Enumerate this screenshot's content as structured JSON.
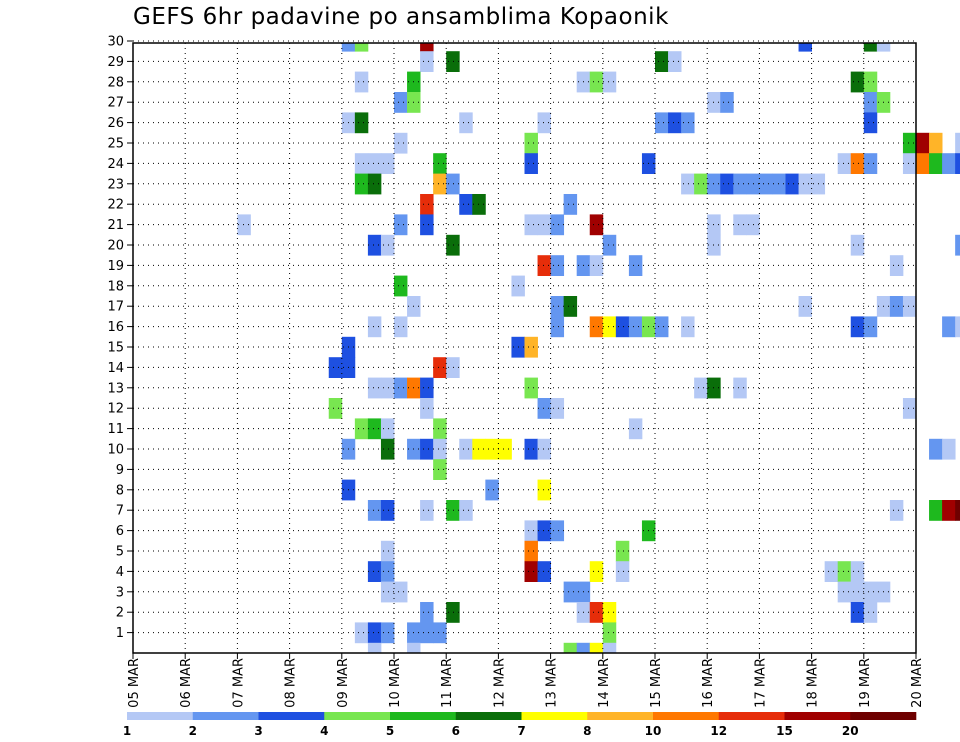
{
  "chart_data": {
    "type": "heatmap",
    "title": "GEFS 6hr padavine po ansamblima Kopaonik",
    "x_ticks": [
      "05 MAR",
      "06 MAR",
      "07 MAR",
      "08 MAR",
      "09 MAR",
      "10 MAR",
      "11 MAR",
      "12 MAR",
      "13 MAR",
      "14 MAR",
      "15 MAR",
      "16 MAR",
      "17 MAR",
      "18 MAR",
      "19 MAR",
      "20 MAR"
    ],
    "y_ticks": [
      1,
      2,
      3,
      4,
      5,
      6,
      7,
      8,
      9,
      10,
      11,
      12,
      13,
      14,
      15,
      16,
      17,
      18,
      19,
      20,
      21,
      22,
      23,
      24,
      25,
      26,
      27,
      28,
      29,
      30
    ],
    "grid": true,
    "colorbar": {
      "labels": [
        "1",
        "2",
        "3",
        "4",
        "5",
        "6",
        "7",
        "8",
        "10",
        "12",
        "15",
        "20"
      ],
      "colors": [
        "#b4c8f5",
        "#6496f0",
        "#1e50e1",
        "#78e650",
        "#1eb91e",
        "#0a6e0a",
        "#ffff00",
        "#ffb428",
        "#ff7800",
        "#e62d0a",
        "#a00000",
        "#6e0000"
      ]
    },
    "cells": [
      [
        4.0,
        30,
        2
      ],
      [
        4.25,
        30,
        4
      ],
      [
        5.5,
        30,
        11
      ],
      [
        12.75,
        30,
        3
      ],
      [
        14.0,
        30,
        6
      ],
      [
        14.25,
        30,
        1
      ],
      [
        5.5,
        29,
        1
      ],
      [
        6.0,
        29,
        6
      ],
      [
        10.0,
        29,
        6
      ],
      [
        10.25,
        29,
        1
      ],
      [
        4.25,
        28,
        1
      ],
      [
        5.25,
        28,
        5
      ],
      [
        8.5,
        28,
        1
      ],
      [
        8.75,
        28,
        4
      ],
      [
        9.0,
        28,
        1
      ],
      [
        13.75,
        28,
        6
      ],
      [
        14.0,
        28,
        4
      ],
      [
        5.0,
        27,
        2
      ],
      [
        5.25,
        27,
        4
      ],
      [
        11.0,
        27,
        1
      ],
      [
        11.25,
        27,
        2
      ],
      [
        14.0,
        27,
        2
      ],
      [
        14.25,
        27,
        4
      ],
      [
        4.0,
        26,
        1
      ],
      [
        4.25,
        26,
        6
      ],
      [
        6.25,
        26,
        1
      ],
      [
        7.75,
        26,
        1
      ],
      [
        10.0,
        26,
        2
      ],
      [
        10.25,
        26,
        3
      ],
      [
        10.5,
        26,
        2
      ],
      [
        14.0,
        26,
        3
      ],
      [
        5.0,
        25,
        1
      ],
      [
        7.5,
        25,
        4
      ],
      [
        14.75,
        25,
        5
      ],
      [
        15.0,
        25,
        11
      ],
      [
        15.25,
        25,
        8
      ],
      [
        15.75,
        25,
        1
      ],
      [
        4.25,
        24,
        1
      ],
      [
        4.5,
        24,
        1
      ],
      [
        4.75,
        24,
        1
      ],
      [
        5.75,
        24,
        5
      ],
      [
        7.5,
        24,
        3
      ],
      [
        9.75,
        24,
        3
      ],
      [
        13.5,
        24,
        1
      ],
      [
        13.75,
        24,
        9
      ],
      [
        14.0,
        24,
        2
      ],
      [
        14.75,
        24,
        1
      ],
      [
        15.0,
        24,
        9
      ],
      [
        15.25,
        24,
        5
      ],
      [
        15.5,
        24,
        2
      ],
      [
        15.75,
        24,
        3
      ],
      [
        4.25,
        23,
        5
      ],
      [
        4.5,
        23,
        6
      ],
      [
        5.75,
        23,
        8
      ],
      [
        6.0,
        23,
        2
      ],
      [
        10.5,
        23,
        1
      ],
      [
        10.75,
        23,
        4
      ],
      [
        11.0,
        23,
        2
      ],
      [
        11.25,
        23,
        3
      ],
      [
        11.5,
        23,
        2
      ],
      [
        11.75,
        23,
        2
      ],
      [
        12.0,
        23,
        2
      ],
      [
        12.25,
        23,
        2
      ],
      [
        12.5,
        23,
        3
      ],
      [
        12.75,
        23,
        1
      ],
      [
        13.0,
        23,
        1
      ],
      [
        5.5,
        22,
        10
      ],
      [
        6.25,
        22,
        3
      ],
      [
        6.5,
        22,
        6
      ],
      [
        8.25,
        22,
        2
      ],
      [
        2.0,
        21,
        1
      ],
      [
        5.0,
        21,
        2
      ],
      [
        5.5,
        21,
        3
      ],
      [
        7.5,
        21,
        1
      ],
      [
        7.75,
        21,
        1
      ],
      [
        8.0,
        21,
        2
      ],
      [
        8.75,
        21,
        11
      ],
      [
        11.0,
        21,
        1
      ],
      [
        11.5,
        21,
        1
      ],
      [
        11.75,
        21,
        1
      ],
      [
        4.5,
        20,
        3
      ],
      [
        4.75,
        20,
        1
      ],
      [
        6.0,
        20,
        6
      ],
      [
        9.0,
        20,
        2
      ],
      [
        11.0,
        20,
        1
      ],
      [
        13.75,
        20,
        1
      ],
      [
        15.75,
        20,
        2
      ],
      [
        7.75,
        19,
        10
      ],
      [
        8.0,
        19,
        2
      ],
      [
        8.5,
        19,
        2
      ],
      [
        8.75,
        19,
        1
      ],
      [
        9.5,
        19,
        2
      ],
      [
        14.5,
        19,
        1
      ],
      [
        5.0,
        18,
        5
      ],
      [
        7.25,
        18,
        1
      ],
      [
        5.25,
        17,
        1
      ],
      [
        8.0,
        17,
        2
      ],
      [
        8.25,
        17,
        6
      ],
      [
        12.75,
        17,
        1
      ],
      [
        14.25,
        17,
        1
      ],
      [
        14.5,
        17,
        2
      ],
      [
        14.75,
        17,
        1
      ],
      [
        4.5,
        16,
        1
      ],
      [
        5.0,
        16,
        1
      ],
      [
        8.0,
        16,
        2
      ],
      [
        8.75,
        16,
        9
      ],
      [
        9.0,
        16,
        7
      ],
      [
        9.25,
        16,
        3
      ],
      [
        9.5,
        16,
        2
      ],
      [
        9.75,
        16,
        4
      ],
      [
        10.0,
        16,
        2
      ],
      [
        10.5,
        16,
        1
      ],
      [
        13.75,
        16,
        3
      ],
      [
        14.0,
        16,
        2
      ],
      [
        15.5,
        16,
        2
      ],
      [
        15.75,
        16,
        1
      ],
      [
        4.0,
        15,
        3
      ],
      [
        7.25,
        15,
        3
      ],
      [
        7.5,
        15,
        8
      ],
      [
        3.75,
        14,
        3
      ],
      [
        4.0,
        14,
        3
      ],
      [
        5.75,
        14,
        10
      ],
      [
        6.0,
        14,
        1
      ],
      [
        4.5,
        13,
        1
      ],
      [
        4.75,
        13,
        1
      ],
      [
        5.0,
        13,
        2
      ],
      [
        5.25,
        13,
        9
      ],
      [
        5.5,
        13,
        3
      ],
      [
        7.5,
        13,
        4
      ],
      [
        10.75,
        13,
        1
      ],
      [
        11.0,
        13,
        6
      ],
      [
        11.5,
        13,
        1
      ],
      [
        3.75,
        12,
        4
      ],
      [
        5.5,
        12,
        1
      ],
      [
        7.75,
        12,
        2
      ],
      [
        8.0,
        12,
        1
      ],
      [
        14.75,
        12,
        1
      ],
      [
        4.25,
        11,
        4
      ],
      [
        4.5,
        11,
        5
      ],
      [
        4.75,
        11,
        1
      ],
      [
        5.75,
        11,
        4
      ],
      [
        9.5,
        11,
        1
      ],
      [
        4.0,
        10,
        2
      ],
      [
        4.75,
        10,
        6
      ],
      [
        5.25,
        10,
        2
      ],
      [
        5.5,
        10,
        3
      ],
      [
        5.75,
        10,
        1
      ],
      [
        6.25,
        10,
        1
      ],
      [
        6.5,
        10,
        7
      ],
      [
        6.75,
        10,
        7
      ],
      [
        7.0,
        10,
        7
      ],
      [
        7.5,
        10,
        3
      ],
      [
        7.75,
        10,
        1
      ],
      [
        15.25,
        10,
        2
      ],
      [
        15.5,
        10,
        1
      ],
      [
        5.75,
        9,
        4
      ],
      [
        4.0,
        8,
        3
      ],
      [
        6.75,
        8,
        2
      ],
      [
        7.75,
        8,
        7
      ],
      [
        4.5,
        7,
        2
      ],
      [
        4.75,
        7,
        3
      ],
      [
        5.5,
        7,
        1
      ],
      [
        6.0,
        7,
        5
      ],
      [
        6.25,
        7,
        1
      ],
      [
        14.5,
        7,
        1
      ],
      [
        15.25,
        7,
        5
      ],
      [
        15.5,
        7,
        11
      ],
      [
        15.75,
        7,
        12
      ],
      [
        16.0,
        7,
        6
      ],
      [
        7.5,
        6,
        1
      ],
      [
        7.75,
        6,
        3
      ],
      [
        8.0,
        6,
        2
      ],
      [
        9.75,
        6,
        5
      ],
      [
        4.75,
        5,
        1
      ],
      [
        7.5,
        5,
        9
      ],
      [
        9.25,
        5,
        4
      ],
      [
        4.5,
        4,
        3
      ],
      [
        4.75,
        4,
        2
      ],
      [
        7.5,
        4,
        11
      ],
      [
        7.75,
        4,
        3
      ],
      [
        8.75,
        4,
        7
      ],
      [
        9.25,
        4,
        1
      ],
      [
        13.25,
        4,
        1
      ],
      [
        13.5,
        4,
        4
      ],
      [
        13.75,
        4,
        1
      ],
      [
        4.75,
        3,
        1
      ],
      [
        5.0,
        3,
        1
      ],
      [
        8.25,
        3,
        2
      ],
      [
        8.5,
        3,
        2
      ],
      [
        13.5,
        3,
        1
      ],
      [
        13.75,
        3,
        1
      ],
      [
        14.0,
        3,
        1
      ],
      [
        14.25,
        3,
        1
      ],
      [
        5.5,
        2,
        2
      ],
      [
        6.0,
        2,
        6
      ],
      [
        8.5,
        2,
        1
      ],
      [
        8.75,
        2,
        10
      ],
      [
        9.0,
        2,
        7
      ],
      [
        13.75,
        2,
        3
      ],
      [
        14.0,
        2,
        1
      ],
      [
        4.25,
        1,
        1
      ],
      [
        4.5,
        1,
        3
      ],
      [
        4.75,
        1,
        2
      ],
      [
        5.25,
        1,
        2
      ],
      [
        5.5,
        1,
        2
      ],
      [
        5.75,
        1,
        2
      ],
      [
        9.0,
        1,
        4
      ],
      [
        4.5,
        0,
        1
      ],
      [
        5.25,
        0,
        1
      ],
      [
        8.25,
        0,
        4
      ],
      [
        8.5,
        0,
        2
      ],
      [
        8.75,
        0,
        7
      ],
      [
        9.0,
        0,
        1
      ]
    ]
  }
}
